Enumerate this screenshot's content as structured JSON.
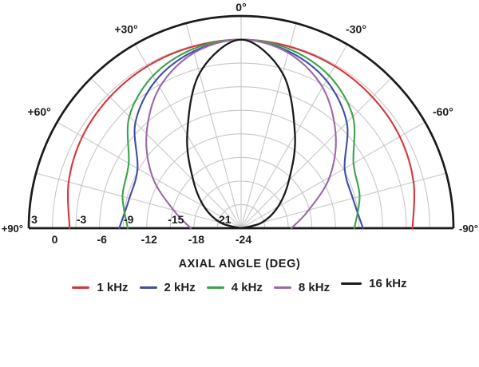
{
  "chart_data": {
    "type": "polar_line",
    "title": "",
    "xlabel": "AXIAL ANGLE (DEG)",
    "angle_axis": {
      "min_deg": -90,
      "max_deg": 90,
      "grid_step_deg": 15,
      "labels": [
        {
          "text": "0°",
          "deg": 0
        },
        {
          "text": "+30°",
          "deg": -30
        },
        {
          "text": "-30°",
          "deg": 30
        },
        {
          "text": "+60°",
          "deg": -60
        },
        {
          "text": "-60°",
          "deg": 60
        },
        {
          "text": "+90°",
          "deg": -90
        },
        {
          "text": "-90°",
          "deg": 90
        }
      ]
    },
    "radial_axis": {
      "unit": "dB",
      "min": -24,
      "max": 3,
      "ring_step": 3,
      "labels_above_axis": [
        {
          "text": "3",
          "db": 3
        },
        {
          "text": "-3",
          "db": -3
        },
        {
          "text": "-9",
          "db": -9
        },
        {
          "text": "-15",
          "db": -15
        },
        {
          "text": "-21",
          "db": -21
        }
      ],
      "labels_below_axis": [
        {
          "text": "0",
          "db": 0
        },
        {
          "text": "-6",
          "db": -6
        },
        {
          "text": "-12",
          "db": -12
        },
        {
          "text": "-18",
          "db": -18
        },
        {
          "text": "-24",
          "db": -24
        }
      ]
    },
    "angles_deg": [
      0,
      15,
      30,
      45,
      60,
      75,
      90
    ],
    "series": [
      {
        "name": "1 kHz",
        "color": "#d7343a",
        "symmetric": true,
        "values_db": [
          0,
          -0.1,
          -0.2,
          -0.4,
          -0.7,
          -1.3,
          -2.2
        ]
      },
      {
        "name": "2 kHz",
        "color": "#3e4fa3",
        "symmetric": true,
        "values_db": [
          0,
          -0.7,
          -2.3,
          -5.0,
          -8.8,
          -9.3,
          -8.5
        ]
      },
      {
        "name": "4 kHz",
        "color": "#3da24c",
        "symmetric": true,
        "values_db": [
          0,
          -0.4,
          -1.6,
          -3.9,
          -7.5,
          -8.4,
          -9.6
        ]
      },
      {
        "name": "8 kHz",
        "color": "#9b68a8",
        "symmetric": true,
        "values_db": [
          0,
          -0.9,
          -3.3,
          -7.0,
          -11.0,
          -15.1,
          -17.6
        ]
      },
      {
        "name": "16 kHz",
        "color": "#1a1a1a",
        "symmetric": true,
        "values_db": [
          0,
          -3.6,
          -10.3,
          -15.4,
          -18.6,
          -21.3,
          -24.0
        ]
      }
    ],
    "grid_color": "#c7c7c7",
    "axis_color": "#1b1b1b",
    "legend_position": "bottom"
  }
}
